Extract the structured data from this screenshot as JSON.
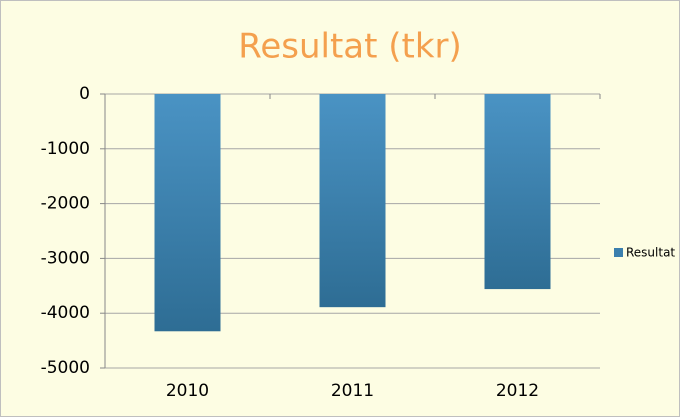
{
  "chart_data": {
    "type": "bar",
    "title": "Resultat (tkr)",
    "categories": [
      "2010",
      "2011",
      "2012"
    ],
    "series": [
      {
        "name": "Resultat",
        "color": "#3b7fae",
        "values": [
          -4330,
          -3890,
          -3560
        ]
      }
    ],
    "ylim": [
      -5000,
      0
    ],
    "yticks": [
      0,
      -1000,
      -2000,
      -3000,
      -4000,
      -5000
    ],
    "grid": true,
    "legend": "right"
  }
}
